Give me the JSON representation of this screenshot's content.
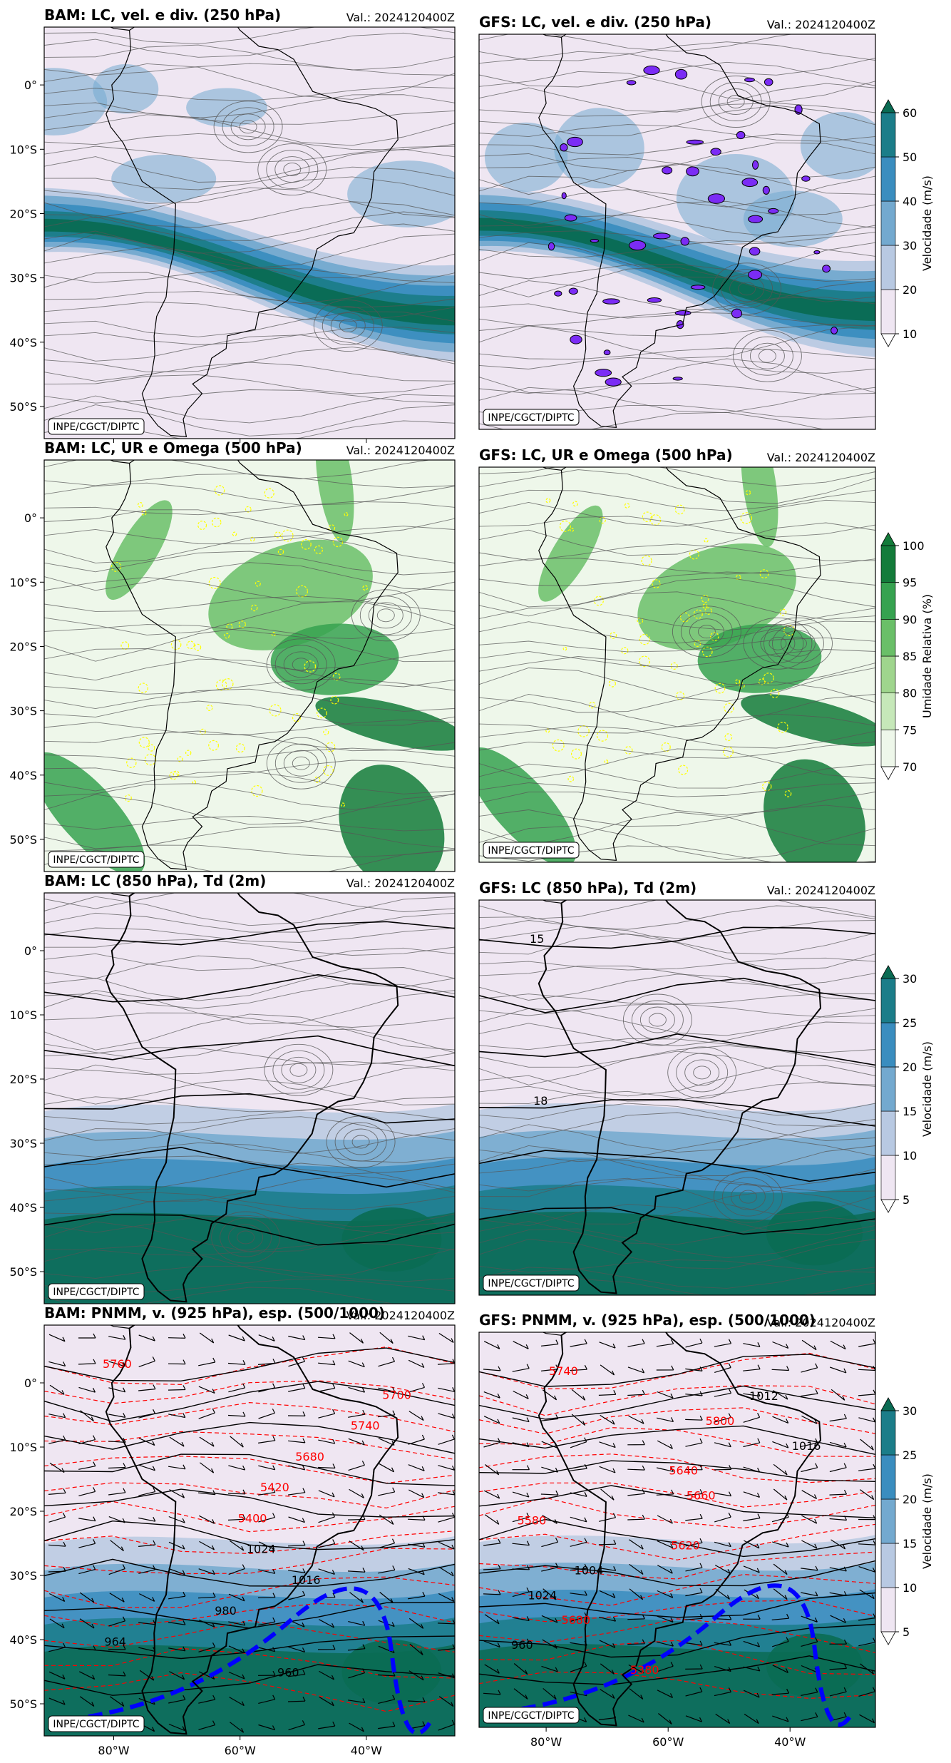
{
  "colors": {
    "wind_scale": [
      "#efe6f2",
      "#b8c9e2",
      "#73a9cf",
      "#3a8dbf",
      "#1b7d89",
      "#0a6b53"
    ],
    "rh_scale": [
      "#eef7ea",
      "#c6e8b9",
      "#9fd58d",
      "#6abf68",
      "#36a250",
      "#137b3a"
    ],
    "omega": "#ffff00",
    "streamline": "#555555",
    "coast": "#000000",
    "thickness": "#ff0000",
    "thickness_5400": "#0000ff",
    "divergence": "#7b2cf5"
  },
  "credit": "INPE/CGCT/DIPTC",
  "chart_data": [
    {
      "id": "p1",
      "type": "map",
      "model": "BAM",
      "title": "BAM: LC, vel. e div. (250 hPa)",
      "valid": "Val.: 2024120400Z",
      "lat_ticks": [
        0,
        -10,
        -20,
        -30,
        -40,
        -50
      ],
      "lat_tick_labels": [
        "0°",
        "10°S",
        "20°S",
        "30°S",
        "40°S",
        "50°S"
      ],
      "lon_tick_labels": [],
      "field": "wind250"
    },
    {
      "id": "p2",
      "type": "map",
      "model": "GFS",
      "title": "GFS: LC, vel. e div. (250 hPa)",
      "valid": "Val.: 2024120400Z",
      "field": "wind250",
      "colorbar": {
        "label": "Velocidade (m/s)",
        "levels": [
          10,
          20,
          30,
          40,
          50,
          60
        ],
        "extend": "both"
      }
    },
    {
      "id": "p3",
      "type": "map",
      "model": "BAM",
      "title": "BAM: LC, UR e Omega (500 hPa)",
      "valid": "Val.: 2024120400Z",
      "lat_ticks": [
        0,
        -10,
        -20,
        -30,
        -40,
        -50
      ],
      "lat_tick_labels": [
        "0°",
        "10°S",
        "20°S",
        "30°S",
        "40°S",
        "50°S"
      ],
      "field": "rh500"
    },
    {
      "id": "p4",
      "type": "map",
      "model": "GFS",
      "title": "GFS: LC, UR e Omega (500 hPa)",
      "valid": "Val.: 2024120400Z",
      "field": "rh500",
      "colorbar": {
        "label": "Umidade Relativa (%)",
        "levels": [
          70,
          75,
          80,
          85,
          90,
          95,
          100
        ],
        "extend": "both"
      }
    },
    {
      "id": "p5",
      "type": "map",
      "model": "BAM",
      "title": "BAM: LC (850 hPa), Td (2m)",
      "valid": "Val.: 2024120400Z",
      "lat_ticks": [
        0,
        -10,
        -20,
        -30,
        -40,
        -50
      ],
      "lat_tick_labels": [
        "0°",
        "10°S",
        "20°S",
        "30°S",
        "40°S",
        "50°S"
      ],
      "field": "wind850"
    },
    {
      "id": "p6",
      "type": "map",
      "model": "GFS",
      "title": "GFS: LC (850 hPa), Td (2m)",
      "valid": "Val.: 2024120400Z",
      "field": "wind850",
      "contour_labels": [
        "15",
        "18"
      ],
      "colorbar": {
        "label": "Velocidade (m/s)",
        "levels": [
          5,
          10,
          15,
          20,
          25,
          30
        ],
        "extend": "both"
      }
    },
    {
      "id": "p7",
      "type": "map",
      "model": "BAM",
      "title": "BAM: PNMM, v. (925 hPa), esp. (500/1000)",
      "valid": "Val.: 2024120400Z",
      "lat_ticks": [
        0,
        -10,
        -20,
        -30,
        -40,
        -50
      ],
      "lat_tick_labels": [
        "0°",
        "10°S",
        "20°S",
        "30°S",
        "40°S",
        "50°S"
      ],
      "lon_tick_labels": [
        "80°W",
        "60°W",
        "40°W"
      ],
      "field": "mslp",
      "contour_labels": [
        "5760",
        "5700",
        "5740",
        "5680",
        "5420",
        "5400",
        "1024",
        "1016",
        "980",
        "964",
        "960"
      ]
    },
    {
      "id": "p8",
      "type": "map",
      "model": "GFS",
      "title": "GFS: PNMM, v. (925 hPa), esp. (500/1000)",
      "valid": "Val.: 2024120400Z",
      "lon_tick_labels": [
        "80°W",
        "60°W",
        "40°W"
      ],
      "field": "mslp",
      "contour_labels": [
        "5740",
        "1012",
        "5800",
        "1016",
        "5640",
        "5660",
        "5580",
        "5620",
        "1004",
        "1024",
        "5680",
        "960",
        "5380"
      ],
      "colorbar": {
        "label": "Velocidade (m/s)",
        "levels": [
          5,
          10,
          15,
          20,
          25,
          30
        ],
        "extend": "both"
      }
    }
  ]
}
